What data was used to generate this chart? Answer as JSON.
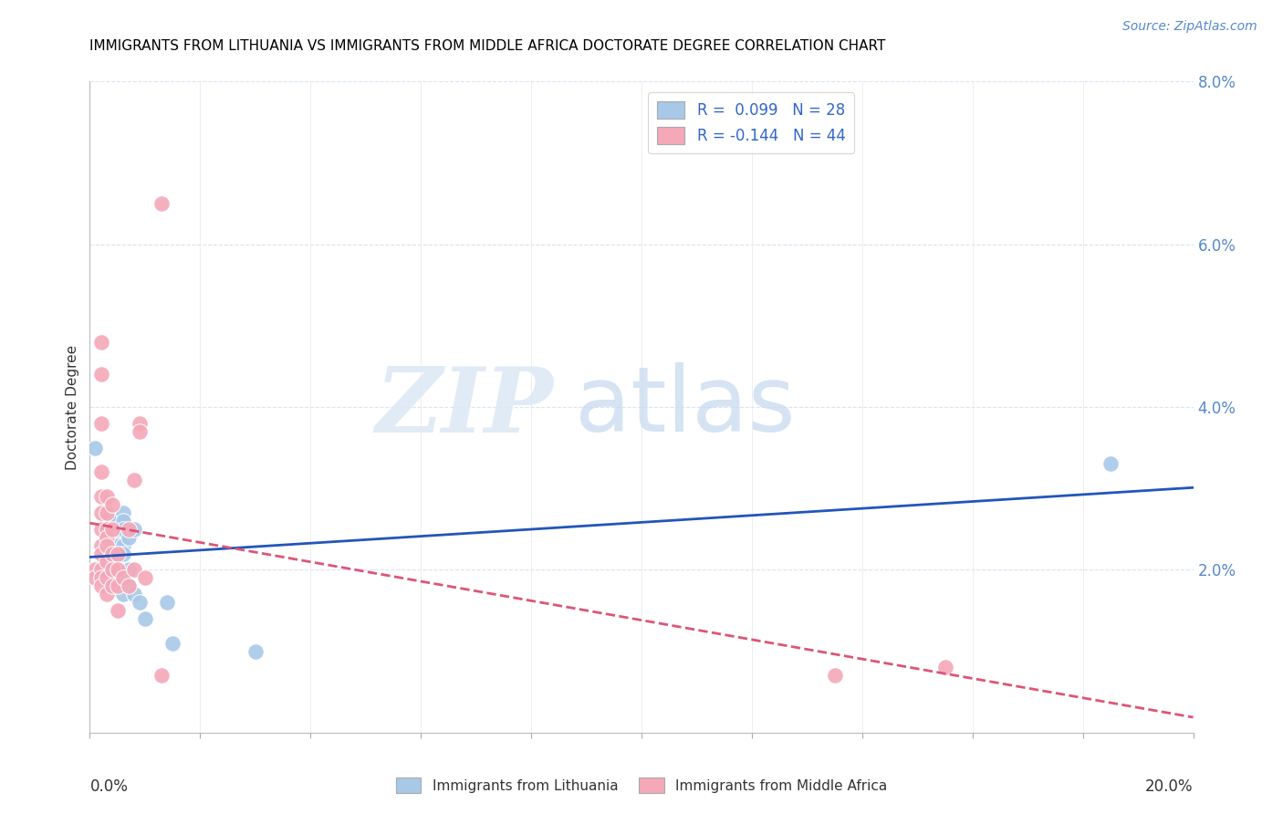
{
  "title": "IMMIGRANTS FROM LITHUANIA VS IMMIGRANTS FROM MIDDLE AFRICA DOCTORATE DEGREE CORRELATION CHART",
  "source": "Source: ZipAtlas.com",
  "ylabel": "Doctorate Degree",
  "xmin": 0.0,
  "xmax": 0.2,
  "ymin": 0.0,
  "ymax": 0.08,
  "yticks": [
    0.0,
    0.02,
    0.04,
    0.06,
    0.08
  ],
  "ytick_labels": [
    "",
    "2.0%",
    "4.0%",
    "6.0%",
    "8.0%"
  ],
  "blue_color": "#a8c8e8",
  "pink_color": "#f4a8b8",
  "blue_line_color": "#2255bb",
  "pink_line_color": "#dd5577",
  "blue_scatter": [
    [
      0.001,
      0.035
    ],
    [
      0.003,
      0.026
    ],
    [
      0.003,
      0.025
    ],
    [
      0.004,
      0.026
    ],
    [
      0.004,
      0.025
    ],
    [
      0.004,
      0.024
    ],
    [
      0.005,
      0.026
    ],
    [
      0.005,
      0.025
    ],
    [
      0.005,
      0.023
    ],
    [
      0.005,
      0.022
    ],
    [
      0.006,
      0.027
    ],
    [
      0.006,
      0.026
    ],
    [
      0.006,
      0.025
    ],
    [
      0.006,
      0.023
    ],
    [
      0.006,
      0.022
    ],
    [
      0.006,
      0.019
    ],
    [
      0.006,
      0.017
    ],
    [
      0.007,
      0.024
    ],
    [
      0.007,
      0.02
    ],
    [
      0.007,
      0.018
    ],
    [
      0.008,
      0.025
    ],
    [
      0.008,
      0.017
    ],
    [
      0.009,
      0.016
    ],
    [
      0.01,
      0.014
    ],
    [
      0.014,
      0.016
    ],
    [
      0.015,
      0.011
    ],
    [
      0.03,
      0.01
    ],
    [
      0.185,
      0.033
    ]
  ],
  "pink_scatter": [
    [
      0.013,
      0.065
    ],
    [
      0.001,
      0.02
    ],
    [
      0.001,
      0.019
    ],
    [
      0.002,
      0.048
    ],
    [
      0.002,
      0.044
    ],
    [
      0.002,
      0.038
    ],
    [
      0.002,
      0.032
    ],
    [
      0.002,
      0.029
    ],
    [
      0.002,
      0.027
    ],
    [
      0.002,
      0.025
    ],
    [
      0.002,
      0.023
    ],
    [
      0.002,
      0.022
    ],
    [
      0.002,
      0.02
    ],
    [
      0.002,
      0.019
    ],
    [
      0.002,
      0.018
    ],
    [
      0.003,
      0.029
    ],
    [
      0.003,
      0.027
    ],
    [
      0.003,
      0.025
    ],
    [
      0.003,
      0.024
    ],
    [
      0.003,
      0.023
    ],
    [
      0.003,
      0.021
    ],
    [
      0.003,
      0.019
    ],
    [
      0.003,
      0.017
    ],
    [
      0.004,
      0.028
    ],
    [
      0.004,
      0.025
    ],
    [
      0.004,
      0.022
    ],
    [
      0.004,
      0.02
    ],
    [
      0.004,
      0.018
    ],
    [
      0.005,
      0.022
    ],
    [
      0.005,
      0.02
    ],
    [
      0.005,
      0.018
    ],
    [
      0.005,
      0.015
    ],
    [
      0.006,
      0.019
    ],
    [
      0.007,
      0.025
    ],
    [
      0.007,
      0.018
    ],
    [
      0.008,
      0.031
    ],
    [
      0.008,
      0.02
    ],
    [
      0.009,
      0.038
    ],
    [
      0.009,
      0.037
    ],
    [
      0.01,
      0.019
    ],
    [
      0.013,
      0.007
    ],
    [
      0.135,
      0.007
    ],
    [
      0.155,
      0.008
    ]
  ]
}
